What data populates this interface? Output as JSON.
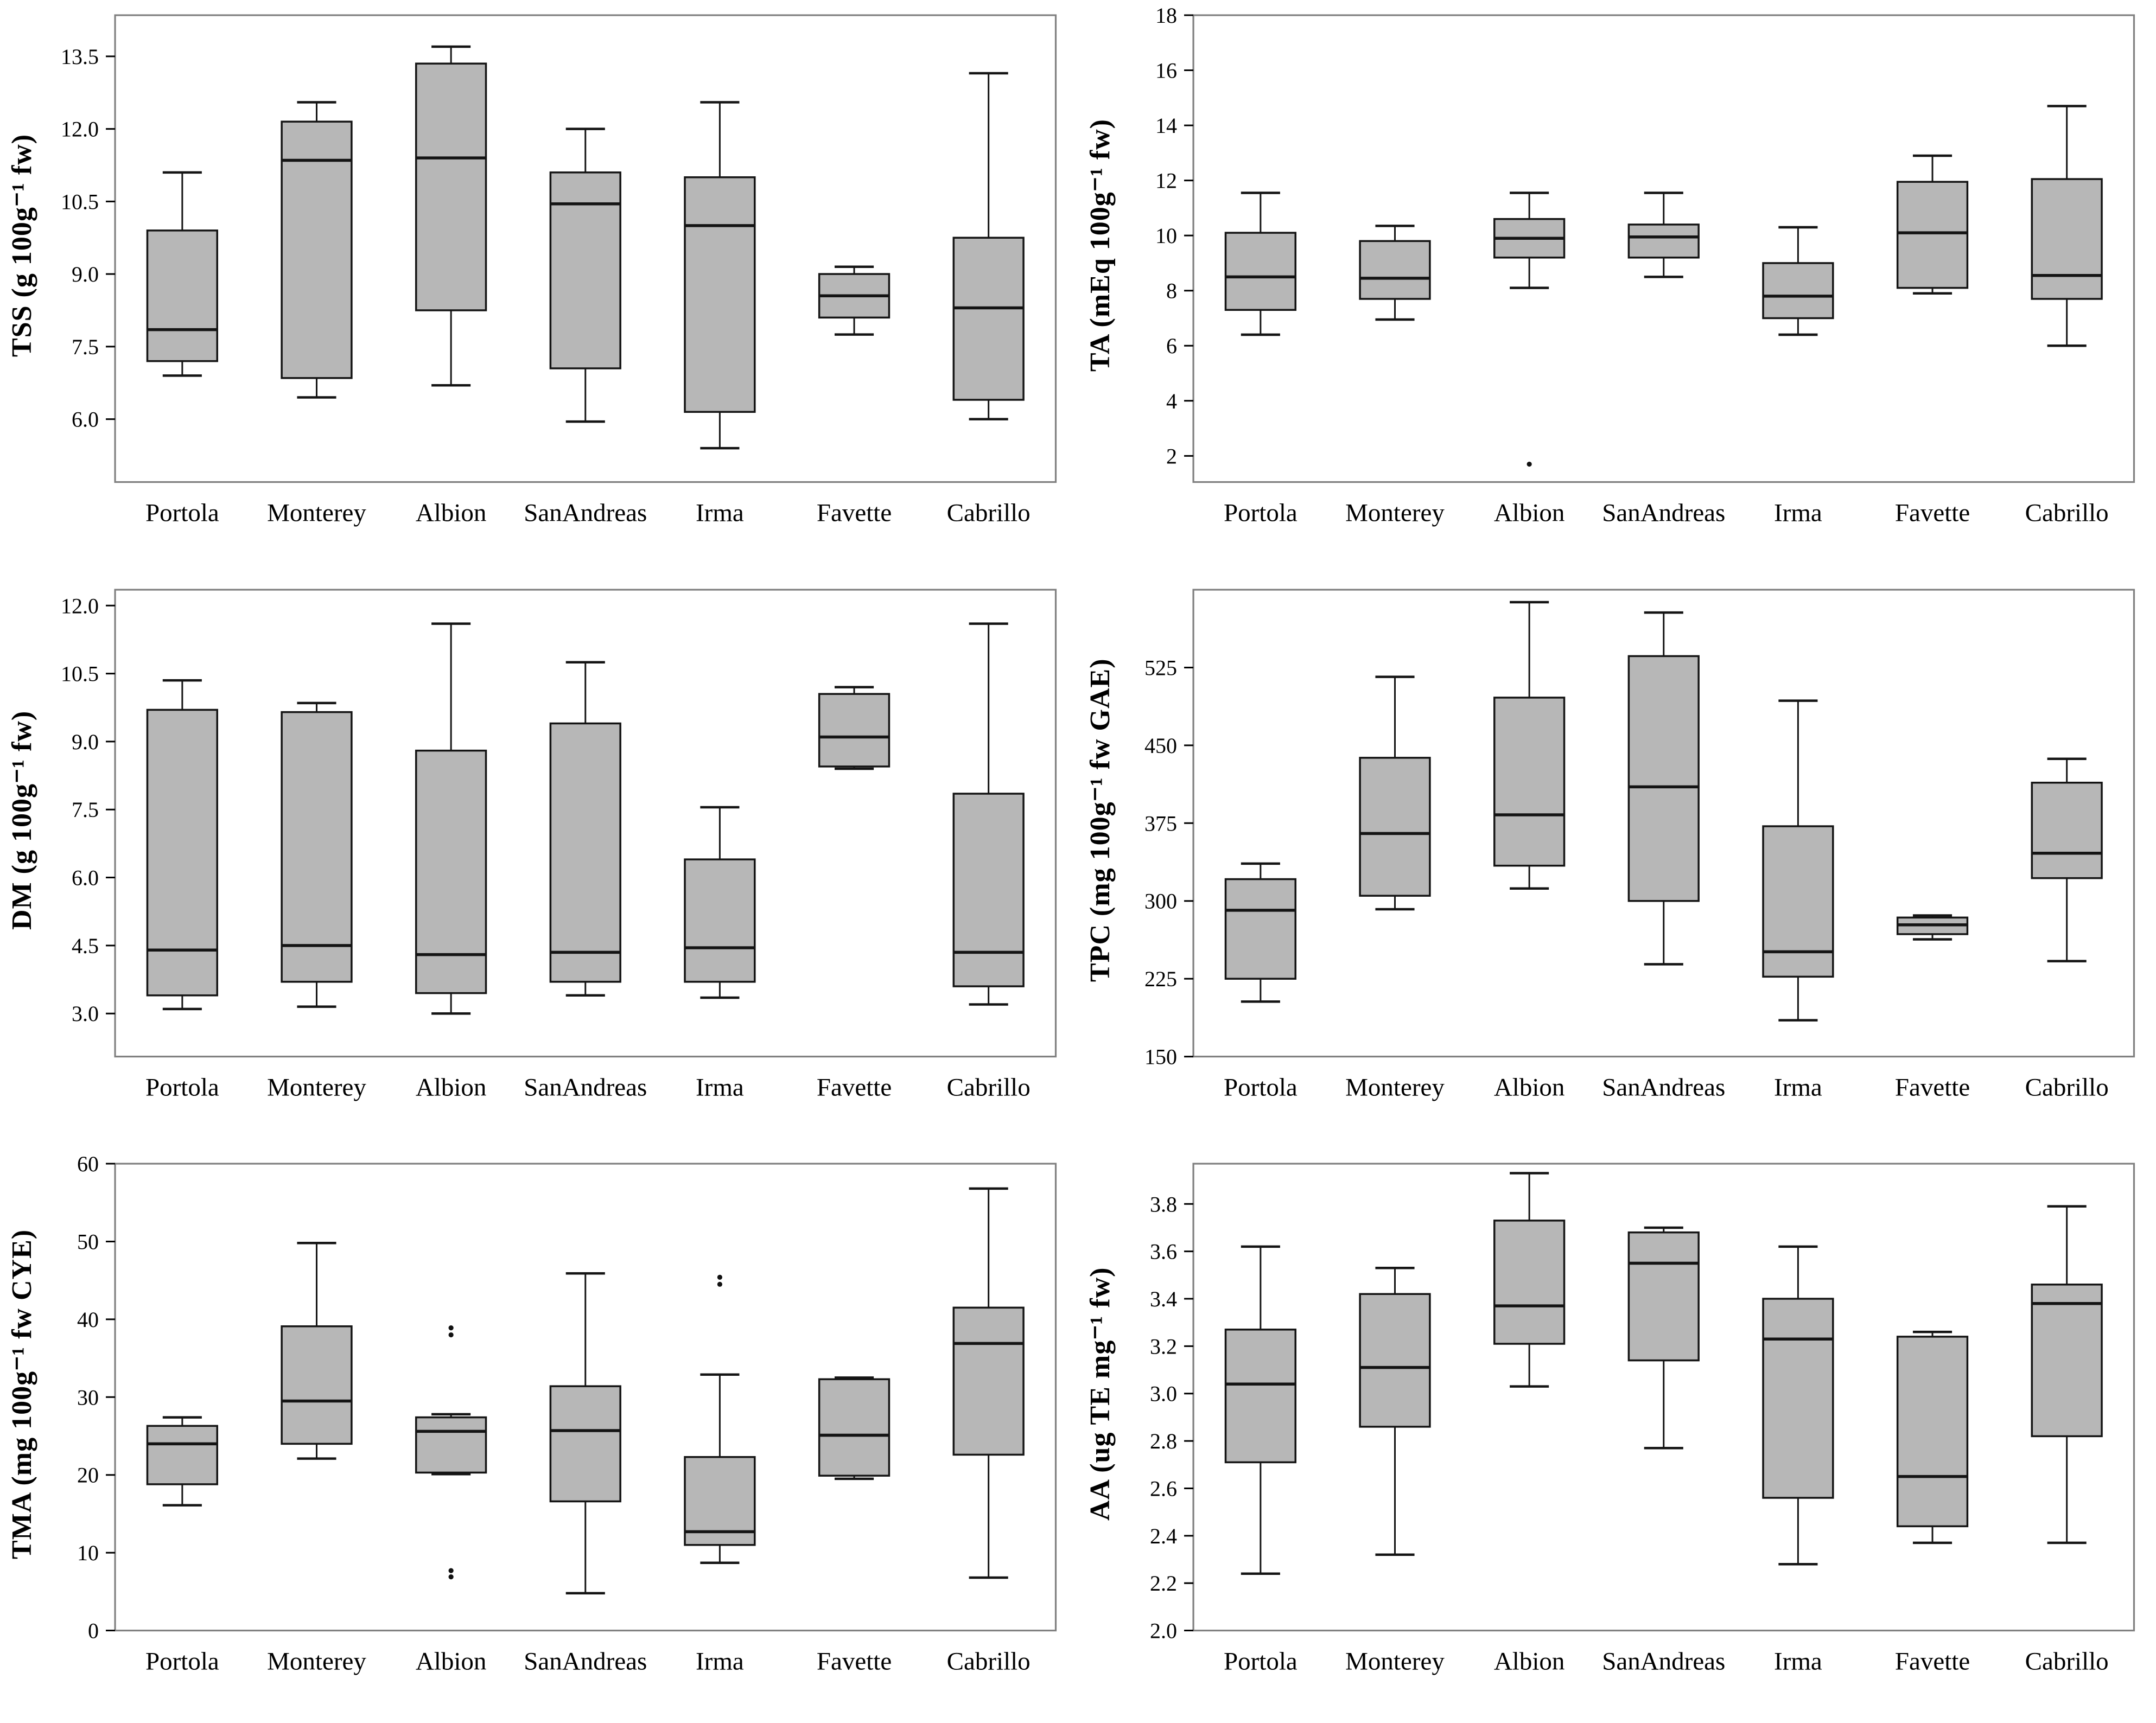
{
  "figure": {
    "description": "Six box-and-whisker plots of strawberry fruit quality traits across seven cultivars",
    "cultivars": [
      "Portola",
      "Monterey",
      "Albion",
      "SanAndreas",
      "Irma",
      "Favette",
      "Cabrillo"
    ]
  },
  "style": {
    "box_fill": "#b7b7b7",
    "box_stroke": "#141414",
    "frame_stroke": "#808080",
    "text_color": "#000000",
    "background": "#ffffff"
  },
  "chart_data": [
    {
      "id": "tss",
      "type": "box",
      "ylabel": "TSS (g 100g⁻¹ fw)",
      "categories": [
        "Portola",
        "Monterey",
        "Albion",
        "SanAndreas",
        "Irma",
        "Favette",
        "Cabrillo"
      ],
      "ylim": [
        4.7,
        14.35
      ],
      "ytick_values": [
        6.0,
        7.5,
        9.0,
        10.5,
        12.0,
        13.5
      ],
      "ytick_labels": [
        "6.0",
        "7.5",
        "9.0",
        "10.5",
        "12.0",
        "13.5"
      ],
      "series": [
        {
          "name": "Portola",
          "low": 6.9,
          "q1": 7.2,
          "median": 7.85,
          "q3": 9.9,
          "high": 11.1,
          "outliers": []
        },
        {
          "name": "Monterey",
          "low": 6.45,
          "q1": 6.85,
          "median": 11.35,
          "q3": 12.15,
          "high": 12.55,
          "outliers": []
        },
        {
          "name": "Albion",
          "low": 6.7,
          "q1": 8.25,
          "median": 11.4,
          "q3": 13.35,
          "high": 13.7,
          "outliers": []
        },
        {
          "name": "SanAndreas",
          "low": 5.95,
          "q1": 7.05,
          "median": 10.45,
          "q3": 11.1,
          "high": 12.0,
          "outliers": []
        },
        {
          "name": "Irma",
          "low": 5.4,
          "q1": 6.15,
          "median": 10.0,
          "q3": 11.0,
          "high": 12.55,
          "outliers": []
        },
        {
          "name": "Favette",
          "low": 7.75,
          "q1": 8.1,
          "median": 8.55,
          "q3": 9.0,
          "high": 9.15,
          "outliers": []
        },
        {
          "name": "Cabrillo",
          "low": 6.0,
          "q1": 6.4,
          "median": 8.3,
          "q3": 9.75,
          "high": 13.15,
          "outliers": []
        }
      ]
    },
    {
      "id": "ta",
      "type": "box",
      "ylabel": "TA (mEq 100g⁻¹ fw)",
      "categories": [
        "Portola",
        "Monterey",
        "Albion",
        "SanAndreas",
        "Irma",
        "Favette",
        "Cabrillo"
      ],
      "ylim": [
        1.05,
        18
      ],
      "ytick_values": [
        2,
        4,
        6,
        8,
        10,
        12,
        14,
        16,
        18
      ],
      "ytick_labels": [
        "2",
        "4",
        "6",
        "8",
        "10",
        "12",
        "14",
        "16",
        "18"
      ],
      "series": [
        {
          "name": "Portola",
          "low": 6.4,
          "q1": 7.3,
          "median": 8.5,
          "q3": 10.1,
          "high": 11.55,
          "outliers": []
        },
        {
          "name": "Monterey",
          "low": 6.95,
          "q1": 7.7,
          "median": 8.45,
          "q3": 9.8,
          "high": 10.35,
          "outliers": []
        },
        {
          "name": "Albion",
          "low": 8.1,
          "q1": 9.2,
          "median": 9.9,
          "q3": 10.6,
          "high": 11.55,
          "outliers": [
            1.7
          ]
        },
        {
          "name": "SanAndreas",
          "low": 8.5,
          "q1": 9.2,
          "median": 9.95,
          "q3": 10.4,
          "high": 11.55,
          "outliers": []
        },
        {
          "name": "Irma",
          "low": 6.4,
          "q1": 7.0,
          "median": 7.8,
          "q3": 9.0,
          "high": 10.3,
          "outliers": []
        },
        {
          "name": "Favette",
          "low": 7.9,
          "q1": 8.1,
          "median": 10.1,
          "q3": 11.95,
          "high": 12.9,
          "outliers": []
        },
        {
          "name": "Cabrillo",
          "low": 6.0,
          "q1": 7.7,
          "median": 8.55,
          "q3": 12.05,
          "high": 14.7,
          "outliers": []
        }
      ]
    },
    {
      "id": "dm",
      "type": "box",
      "ylabel": "DM (g 100g⁻¹ fw)",
      "categories": [
        "Portola",
        "Monterey",
        "Albion",
        "SanAndreas",
        "Irma",
        "Favette",
        "Cabrillo"
      ],
      "ylim": [
        2.05,
        12.35
      ],
      "ytick_values": [
        3.0,
        4.5,
        6.0,
        7.5,
        9.0,
        10.5,
        12.0
      ],
      "ytick_labels": [
        "3.0",
        "4.5",
        "6.0",
        "7.5",
        "9.0",
        "10.5",
        "12.0"
      ],
      "series": [
        {
          "name": "Portola",
          "low": 3.1,
          "q1": 3.4,
          "median": 4.4,
          "q3": 9.7,
          "high": 10.35,
          "outliers": []
        },
        {
          "name": "Monterey",
          "low": 3.15,
          "q1": 3.7,
          "median": 4.5,
          "q3": 9.65,
          "high": 9.85,
          "outliers": []
        },
        {
          "name": "Albion",
          "low": 3.0,
          "q1": 3.45,
          "median": 4.3,
          "q3": 8.8,
          "high": 11.6,
          "outliers": []
        },
        {
          "name": "SanAndreas",
          "low": 3.4,
          "q1": 3.7,
          "median": 4.35,
          "q3": 9.4,
          "high": 10.75,
          "outliers": []
        },
        {
          "name": "Irma",
          "low": 3.35,
          "q1": 3.7,
          "median": 4.45,
          "q3": 6.4,
          "high": 7.55,
          "outliers": []
        },
        {
          "name": "Favette",
          "low": 8.4,
          "q1": 8.45,
          "median": 9.1,
          "q3": 10.05,
          "high": 10.2,
          "outliers": []
        },
        {
          "name": "Cabrillo",
          "low": 3.2,
          "q1": 3.6,
          "median": 4.35,
          "q3": 7.85,
          "high": 11.6,
          "outliers": []
        }
      ]
    },
    {
      "id": "tpc",
      "type": "box",
      "ylabel": "TPC (mg 100g⁻¹ fw GAE)",
      "categories": [
        "Portola",
        "Monterey",
        "Albion",
        "SanAndreas",
        "Irma",
        "Favette",
        "Cabrillo"
      ],
      "ylim": [
        150,
        600
      ],
      "ytick_values": [
        150,
        225,
        300,
        375,
        450,
        525
      ],
      "ytick_labels": [
        "150",
        "225",
        "300",
        "375",
        "450",
        "525"
      ],
      "series": [
        {
          "name": "Portola",
          "low": 203,
          "q1": 225,
          "median": 291,
          "q3": 321,
          "high": 336,
          "outliers": []
        },
        {
          "name": "Monterey",
          "low": 292,
          "q1": 305,
          "median": 365,
          "q3": 438,
          "high": 516,
          "outliers": []
        },
        {
          "name": "Albion",
          "low": 312,
          "q1": 334,
          "median": 383,
          "q3": 496,
          "high": 588,
          "outliers": []
        },
        {
          "name": "SanAndreas",
          "low": 239,
          "q1": 300,
          "median": 410,
          "q3": 536,
          "high": 578,
          "outliers": []
        },
        {
          "name": "Irma",
          "low": 185,
          "q1": 227,
          "median": 251,
          "q3": 372,
          "high": 493,
          "outliers": []
        },
        {
          "name": "Favette",
          "low": 263,
          "q1": 268,
          "median": 277,
          "q3": 284,
          "high": 286,
          "outliers": []
        },
        {
          "name": "Cabrillo",
          "low": 242,
          "q1": 322,
          "median": 346,
          "q3": 414,
          "high": 437,
          "outliers": []
        }
      ]
    },
    {
      "id": "tma",
      "type": "box",
      "ylabel": "TMA (mg 100g⁻¹ fw CYE)",
      "categories": [
        "Portola",
        "Monterey",
        "Albion",
        "SanAndreas",
        "Irma",
        "Favette",
        "Cabrillo"
      ],
      "ylim": [
        0,
        60
      ],
      "ytick_values": [
        0,
        10,
        20,
        30,
        40,
        50,
        60
      ],
      "ytick_labels": [
        "0",
        "10",
        "20",
        "30",
        "40",
        "50",
        "60"
      ],
      "series": [
        {
          "name": "Portola",
          "low": 16.1,
          "q1": 18.8,
          "median": 24.0,
          "q3": 26.3,
          "high": 27.4,
          "outliers": []
        },
        {
          "name": "Monterey",
          "low": 22.1,
          "q1": 24.0,
          "median": 29.5,
          "q3": 39.1,
          "high": 49.8,
          "outliers": []
        },
        {
          "name": "Albion",
          "low": 20.1,
          "q1": 20.3,
          "median": 25.6,
          "q3": 27.4,
          "high": 27.8,
          "outliers": [
            38.9,
            38.0,
            7.7,
            6.9
          ]
        },
        {
          "name": "SanAndreas",
          "low": 4.8,
          "q1": 16.6,
          "median": 25.7,
          "q3": 31.4,
          "high": 45.9,
          "outliers": []
        },
        {
          "name": "Irma",
          "low": 8.7,
          "q1": 11.0,
          "median": 12.7,
          "q3": 22.3,
          "high": 32.9,
          "outliers": [
            45.4,
            44.5
          ]
        },
        {
          "name": "Favette",
          "low": 19.5,
          "q1": 19.9,
          "median": 25.1,
          "q3": 32.3,
          "high": 32.5,
          "outliers": []
        },
        {
          "name": "Cabrillo",
          "low": 6.8,
          "q1": 22.6,
          "median": 36.9,
          "q3": 41.5,
          "high": 56.8,
          "outliers": []
        }
      ]
    },
    {
      "id": "aa",
      "type": "box",
      "ylabel": "AA (ug TE mg⁻¹ fw)",
      "categories": [
        "Portola",
        "Monterey",
        "Albion",
        "SanAndreas",
        "Irma",
        "Favette",
        "Cabrillo"
      ],
      "ylim": [
        2.0,
        3.97
      ],
      "ytick_values": [
        2.0,
        2.2,
        2.4,
        2.6,
        2.8,
        3.0,
        3.2,
        3.4,
        3.6,
        3.8
      ],
      "ytick_labels": [
        "2.0",
        "2.2",
        "2.4",
        "2.6",
        "2.8",
        "3.0",
        "3.2",
        "3.4",
        "3.6",
        "3.8"
      ],
      "series": [
        {
          "name": "Portola",
          "low": 2.24,
          "q1": 2.71,
          "median": 3.04,
          "q3": 3.27,
          "high": 3.62,
          "outliers": []
        },
        {
          "name": "Monterey",
          "low": 2.32,
          "q1": 2.86,
          "median": 3.11,
          "q3": 3.42,
          "high": 3.53,
          "outliers": []
        },
        {
          "name": "Albion",
          "low": 3.03,
          "q1": 3.21,
          "median": 3.37,
          "q3": 3.73,
          "high": 3.93,
          "outliers": []
        },
        {
          "name": "SanAndreas",
          "low": 2.77,
          "q1": 3.14,
          "median": 3.55,
          "q3": 3.68,
          "high": 3.7,
          "outliers": []
        },
        {
          "name": "Irma",
          "low": 2.28,
          "q1": 2.56,
          "median": 3.23,
          "q3": 3.4,
          "high": 3.62,
          "outliers": []
        },
        {
          "name": "Favette",
          "low": 2.37,
          "q1": 2.44,
          "median": 2.65,
          "q3": 3.24,
          "high": 3.26,
          "outliers": []
        },
        {
          "name": "Cabrillo",
          "low": 2.37,
          "q1": 2.82,
          "median": 3.38,
          "q3": 3.46,
          "high": 3.79,
          "outliers": []
        }
      ]
    }
  ]
}
